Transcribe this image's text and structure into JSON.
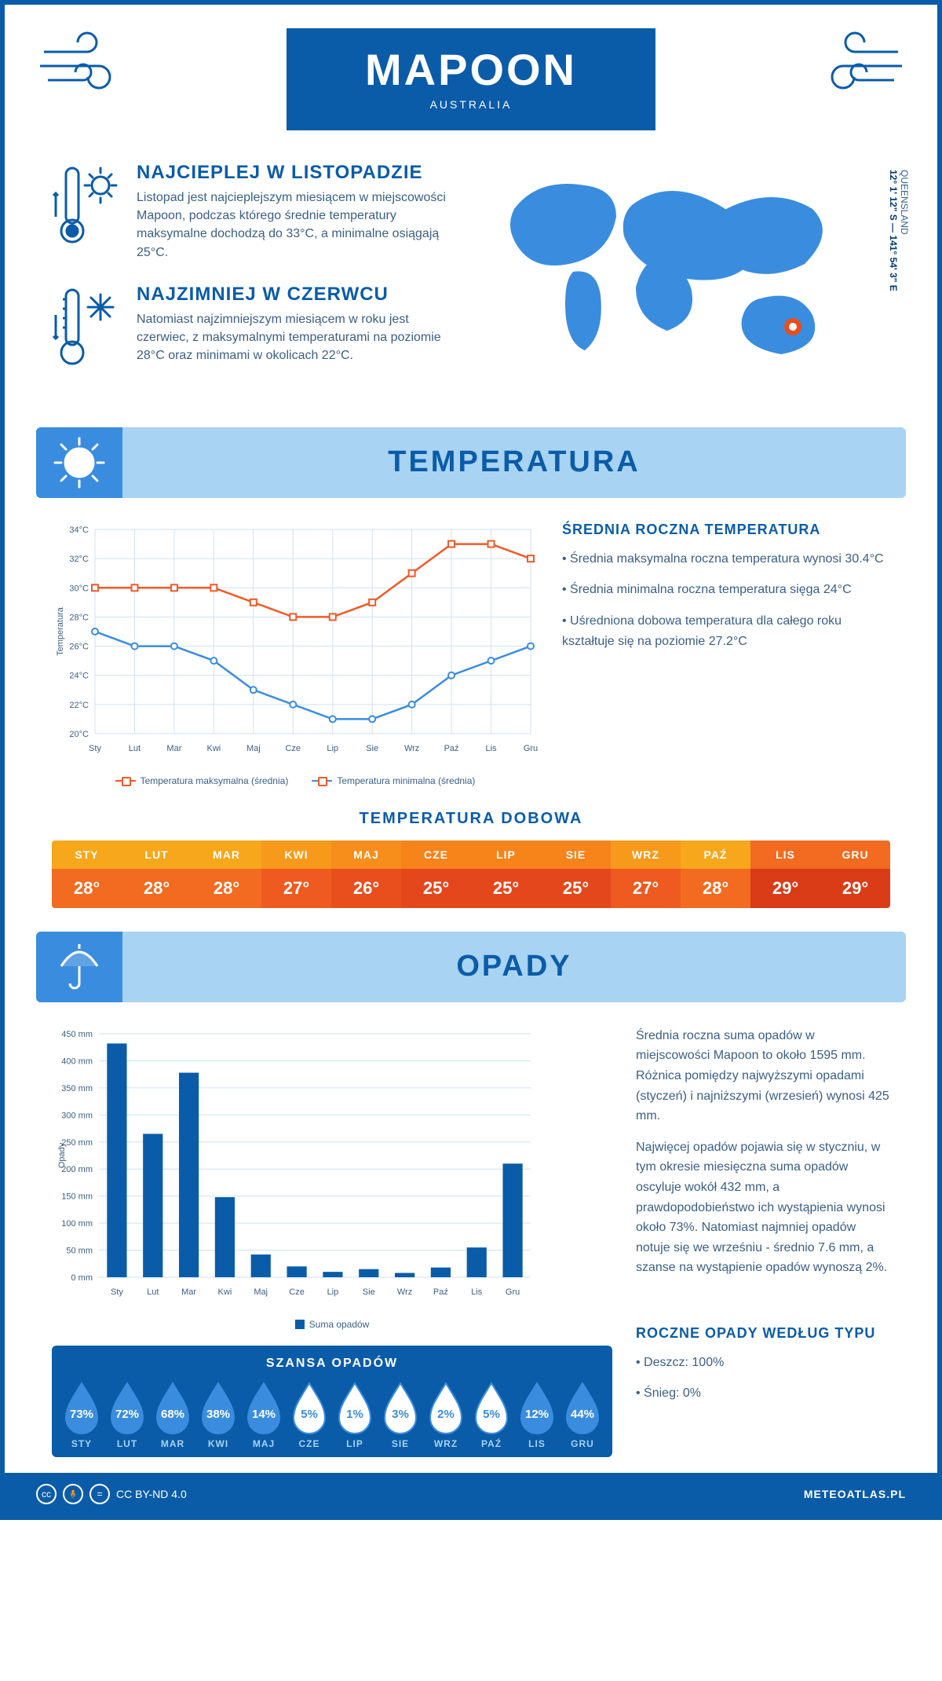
{
  "header": {
    "title": "MAPOON",
    "subtitle": "AUSTRALIA"
  },
  "location": {
    "region": "QUEENSLAND",
    "lat": "12° 1' 12\" S",
    "lon": "141° 54' 3\" E",
    "marker_color": "#e94e1b"
  },
  "colors": {
    "primary": "#0a5ca8",
    "light": "#a9d3f2",
    "accent_blue": "#3a8dde",
    "map_blue": "#3a8dde",
    "text_body": "#3a5f85",
    "white": "#ffffff"
  },
  "intro": {
    "warm": {
      "title": "NAJCIEPLEJ W LISTOPADZIE",
      "text": "Listopad jest najcieplejszym miesiącem w miejscowości Mapoon, podczas którego średnie temperatury maksymalne dochodzą do 33°C, a minimalne osiągają 25°C."
    },
    "cold": {
      "title": "NAJZIMNIEJ W CZERWCU",
      "text": "Natomiast najzimniejszym miesiącem w roku jest czerwiec, z maksymalnymi temperaturami na poziomie 28°C oraz minimami w okolicach 22°C."
    }
  },
  "months": [
    "Sty",
    "Lut",
    "Mar",
    "Kwi",
    "Maj",
    "Cze",
    "Lip",
    "Sie",
    "Wrz",
    "Paź",
    "Lis",
    "Gru"
  ],
  "temperature": {
    "section_title": "TEMPERATURA",
    "chart": {
      "type": "line",
      "ylabel": "Temperatura",
      "ylim": [
        20,
        34
      ],
      "ytick_step": 2,
      "yticks": [
        "20°C",
        "22°C",
        "24°C",
        "26°C",
        "28°C",
        "30°C",
        "32°C",
        "34°C"
      ],
      "grid_color": "#cfe2f3",
      "background_color": "#ffffff",
      "series": [
        {
          "name": "Temperatura maksymalna (średnia)",
          "color": "#f05a28",
          "marker": "square",
          "values": [
            30,
            30,
            30,
            30,
            29,
            28,
            28,
            29,
            31,
            33,
            33,
            32
          ]
        },
        {
          "name": "Temperatura minimalna (średnia)",
          "color": "#3a8dde",
          "marker": "circle",
          "values": [
            27,
            26,
            26,
            25,
            23,
            22,
            21,
            21,
            22,
            24,
            25,
            26
          ]
        }
      ]
    },
    "summary": {
      "title": "ŚREDNIA ROCZNA TEMPERATURA",
      "bullets": [
        "Średnia maksymalna roczna temperatura wynosi 30.4°C",
        "Średnia minimalna roczna temperatura sięga 24°C",
        "Uśredniona dobowa temperatura dla całego roku kształtuje się na poziomie 27.2°C"
      ]
    },
    "daily": {
      "title": "TEMPERATURA DOBOWA",
      "labels": [
        "STY",
        "LUT",
        "MAR",
        "KWI",
        "MAJ",
        "CZE",
        "LIP",
        "SIE",
        "WRZ",
        "PAŹ",
        "LIS",
        "GRU"
      ],
      "values": [
        "28°",
        "28°",
        "28°",
        "27°",
        "26°",
        "25°",
        "25°",
        "25°",
        "27°",
        "28°",
        "29°",
        "29°"
      ],
      "header_colors": [
        "#f7a71b",
        "#f7a71b",
        "#f7a71b",
        "#f79a1b",
        "#f78e1b",
        "#f7831b",
        "#f7831b",
        "#f7831b",
        "#f79a1b",
        "#f7a71b",
        "#f26b21",
        "#f26b21"
      ],
      "value_colors": [
        "#f26b21",
        "#f26b21",
        "#f26b21",
        "#ee5a1f",
        "#e94f1d",
        "#e5471c",
        "#e5471c",
        "#e5471c",
        "#ee5a1f",
        "#f26b21",
        "#d93c17",
        "#d93c17"
      ]
    }
  },
  "precip": {
    "section_title": "OPADY",
    "chart": {
      "type": "bar",
      "ylabel": "Opady",
      "ylim": [
        0,
        450
      ],
      "ytick_step": 50,
      "yticks": [
        "0 mm",
        "50 mm",
        "100 mm",
        "150 mm",
        "200 mm",
        "250 mm",
        "300 mm",
        "350 mm",
        "400 mm",
        "450 mm"
      ],
      "grid_color": "#cfe2f3",
      "bar_color": "#0a5ca8",
      "values": [
        432,
        265,
        378,
        148,
        42,
        20,
        10,
        15,
        8,
        18,
        55,
        210
      ],
      "legend": "Suma opadów"
    },
    "text": {
      "p1": "Średnia roczna suma opadów w miejscowości Mapoon to około 1595 mm. Różnica pomiędzy najwyższymi opadami (styczeń) i najniższymi (wrzesień) wynosi 425 mm.",
      "p2": "Najwięcej opadów pojawia się w styczniu, w tym okresie miesięczna suma opadów oscyluje wokół 432 mm, a prawdopodobieństwo ich wystąpienia wynosi około 73%. Natomiast najmniej opadów notuje się we wrześniu - średnio 7.6 mm, a szanse na wystąpienie opadów wynoszą 2%."
    },
    "chance": {
      "title": "SZANSA OPADÓW",
      "labels": [
        "STY",
        "LUT",
        "MAR",
        "KWI",
        "MAJ",
        "CZE",
        "LIP",
        "SIE",
        "WRZ",
        "PAŹ",
        "LIS",
        "GRU"
      ],
      "values": [
        "73%",
        "72%",
        "68%",
        "38%",
        "14%",
        "5%",
        "1%",
        "3%",
        "2%",
        "5%",
        "12%",
        "44%"
      ],
      "filled": [
        true,
        true,
        true,
        true,
        true,
        false,
        false,
        false,
        false,
        false,
        true,
        true
      ],
      "fill_color": "#3a8dde",
      "empty_fill": "#ffffff",
      "empty_text": "#3a8dde"
    },
    "by_type": {
      "title": "ROCZNE OPADY WEDŁUG TYPU",
      "bullets": [
        "Deszcz: 100%",
        "Śnieg: 0%"
      ]
    }
  },
  "footer": {
    "license": "CC BY-ND 4.0",
    "site": "METEOATLAS.PL"
  }
}
